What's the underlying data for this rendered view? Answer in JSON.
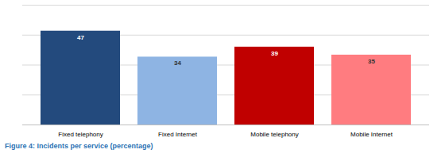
{
  "chart_data": {
    "type": "bar",
    "title": "Figure 4: Incidents per service (percentage)",
    "categories": [
      "Fixed telephony",
      "Fixed Internet",
      "Mobile telephony",
      "Mobile Internet"
    ],
    "values": [
      47,
      34,
      39,
      35
    ],
    "colors": [
      "#234a7d",
      "#8eb4e3",
      "#c00000",
      "#ff7c80"
    ],
    "ylim": [
      0,
      60
    ],
    "yticks": [
      0,
      15,
      30,
      45,
      60
    ],
    "grid": true,
    "data_labels": true,
    "tick_labels": "x"
  }
}
